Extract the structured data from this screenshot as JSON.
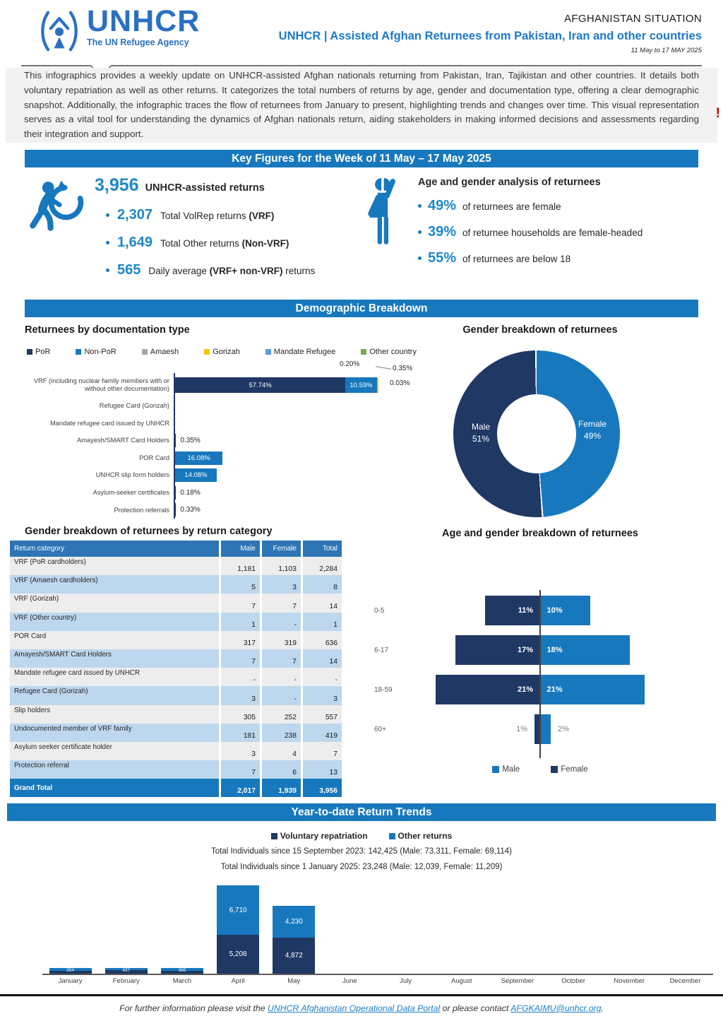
{
  "header": {
    "logo_name": "UNHCR",
    "logo_tagline": "The UN Refugee Agency",
    "situation": "AFGHANISTAN SITUATION",
    "title": "UNHCR |  Assisted Afghan Returnees from Pakistan, Iran and other countries",
    "date_range": "11 May to 17 MAY 2025"
  },
  "intro": {
    "text": "This infographics provides a weekly update on UNHCR-assisted Afghan nationals returning from Pakistan, Iran, Tajikistan and other countries. It details both voluntary repatriation as well as other returns. It categorizes the total numbers of returns by age, gender and documentation type, offering a clear demographic snapshot. Additionally, the infographic traces the flow of returnees from January to present, highlighting trends and changes over time. This visual representation serves as a vital tool for understanding the dynamics of Afghan nationals return, aiding stakeholders in making informed decisions and assessments regarding their integration and support.",
    "alert": "!"
  },
  "banners": {
    "key_figures": "Key Figures for the Week of 11 May – 17 May 2025",
    "demographic": "Demographic Breakdown",
    "trends": "Year-to-date Return Trends"
  },
  "key_figures": {
    "headline": {
      "value": "3,956",
      "label": "UNHCR-assisted returns"
    },
    "bullets": [
      {
        "value": "2,307",
        "text": "Total VolRep returns ",
        "bold": "(VRF)",
        "suffix": ""
      },
      {
        "value": "1,649",
        "text": "Total Other returns ",
        "bold": "(Non-VRF)",
        "suffix": ""
      },
      {
        "value": "565",
        "text": "Daily average ",
        "bold": "(VRF+ non-VRF)",
        "suffix": " returns"
      }
    ],
    "age_gender": {
      "heading": "Age and gender analysis of returnees",
      "bullets": [
        {
          "value": "49%",
          "text": "of returnees are female"
        },
        {
          "value": "39%",
          "text": "of returnee households are female-headed"
        },
        {
          "value": "55%",
          "text": "of returnees are below 18"
        }
      ]
    }
  },
  "chart_data": [
    {
      "id": "documentation_type",
      "type": "bar",
      "orientation": "horizontal",
      "unit": "%",
      "title": "Returnees by documentation type",
      "legend": [
        {
          "label": "PoR",
          "color": "#1F3864"
        },
        {
          "label": "Non-PoR",
          "color": "#1878BE"
        },
        {
          "label": "Amaesh",
          "color": "#A6A6A6"
        },
        {
          "label": "Gorizah",
          "color": "#FFC000"
        },
        {
          "label": "Mandate Refugee",
          "color": "#5B9BD5"
        },
        {
          "label": "Other country",
          "color": "#70AD47"
        }
      ],
      "rows": [
        {
          "label": "VRF (including nuclear family members with or without other documentation)",
          "tall": true,
          "segments": [
            {
              "name": "por",
              "color": "#1F3864",
              "pct": 57.74,
              "label": "57.74%"
            },
            {
              "name": "non-por",
              "color": "#1878BE",
              "pct": 10.59,
              "label": "10.59%"
            },
            {
              "name": "gorizah",
              "color": "#FFC000",
              "pct": 0.58
            }
          ]
        },
        {
          "label": "Refugee Card (Gorizah)"
        },
        {
          "label": "Mandate refugee card issued by UNHCR"
        },
        {
          "label": "Amayesh/SMART Card Holders",
          "segments": [
            {
              "name": "amayesh",
              "color": "#1F3864",
              "pct": 0.35
            }
          ],
          "outside_label": "0.35%"
        },
        {
          "label": "POR Card",
          "segments": [
            {
              "name": "por-card",
              "color": "#1878BE",
              "pct": 16.08,
              "label": "16.08%"
            }
          ]
        },
        {
          "label": "UNHCR slip form holders",
          "segments": [
            {
              "name": "slip",
              "color": "#1878BE",
              "pct": 14.08,
              "label": "14.08%"
            }
          ]
        },
        {
          "label": "Asylum-seeker certificates",
          "segments": [
            {
              "name": "asylum",
              "color": "#1F3864",
              "pct": 0.18
            }
          ],
          "outside_label": "0.18%"
        },
        {
          "label": "Protection referrals",
          "segments": [
            {
              "name": "protection",
              "color": "#1F3864",
              "pct": 0.33
            }
          ],
          "outside_label": "0.33%"
        }
      ],
      "callouts": {
        "a": "0.20%",
        "b": "0.35%",
        "c": "0.03%"
      }
    },
    {
      "id": "gender_breakdown",
      "type": "pie",
      "title": "Gender breakdown of returnees",
      "slices": [
        {
          "label": "Male",
          "pct": 51,
          "pct_label": "51%",
          "color": "#1F3864"
        },
        {
          "label": "Female",
          "pct": 49,
          "pct_label": "49%",
          "color": "#1878BE"
        }
      ]
    },
    {
      "id": "return_category_table",
      "type": "table",
      "title": "Gender breakdown of returnees by return category",
      "columns": [
        "Return category",
        "Male",
        "Female",
        "Total"
      ],
      "rows": [
        [
          "VRF (PoR cardholders)",
          "1,181",
          "1,103",
          "2,284"
        ],
        [
          "VRF (Amaesh cardholders)",
          "5",
          "3",
          "8"
        ],
        [
          "VRF (Gorizah)",
          "7",
          "7",
          "14"
        ],
        [
          "VRF (Other country)",
          "1",
          "-",
          "1"
        ],
        [
          "POR Card",
          "317",
          "319",
          "636"
        ],
        [
          "Amayesh/SMART Card Holders",
          "7",
          "7",
          "14"
        ],
        [
          "Mandate refugee card issued by UNHCR",
          "-",
          "-",
          "-"
        ],
        [
          "Refugee Card (Gorizah)",
          "3",
          "-",
          "3"
        ],
        [
          "Slip holders",
          "305",
          "252",
          "557"
        ],
        [
          "Undocumented member of VRF family",
          "181",
          "238",
          "419"
        ],
        [
          "Asylum seeker certificate holder",
          "3",
          "4",
          "7"
        ],
        [
          "Protection referral",
          "7",
          "6",
          "13"
        ]
      ],
      "grand_total": [
        "Grand Total",
        "2,017",
        "1,939",
        "3,956"
      ]
    },
    {
      "id": "age_gender_pyramid",
      "type": "bar",
      "title": "Age and gender breakdown of returnees",
      "categories": [
        "0-5",
        "6-17",
        "18-59",
        "60+"
      ],
      "left": {
        "color": "#1F3864",
        "values": [
          11,
          17,
          21,
          1
        ],
        "labels": [
          "11%",
          "17%",
          "21%",
          "1%"
        ]
      },
      "right": {
        "color": "#1878BE",
        "values": [
          10,
          18,
          21,
          2
        ],
        "labels": [
          "10%",
          "18%",
          "21%",
          "2%"
        ]
      },
      "outside_label_rows": [
        3
      ],
      "legend": [
        {
          "label": "Male",
          "color": "#1878BE"
        },
        {
          "label": "Female",
          "color": "#1F3864"
        }
      ]
    },
    {
      "id": "ytd_trends",
      "type": "bar",
      "stacked": true,
      "title": "Year-to-date Return Trends",
      "legend": [
        {
          "label": "Voluntary repatriation",
          "color": "#1F3864"
        },
        {
          "label": "Other returns",
          "color": "#1878BE"
        }
      ],
      "note1": "Total Individuals since 15 September 2023: 142,425 (Male: 73,311, Female: 69,114)",
      "note2": "Total Individuals since 1 January 2025: 23,248 (Male: 12,039, Female: 11,209)",
      "months": [
        "January",
        "February",
        "March",
        "April",
        "May",
        "June",
        "July",
        "August",
        "September",
        "October",
        "November",
        "December"
      ],
      "series": [
        {
          "name": "Voluntary repatriation",
          "color": "#1F3864",
          "values": [
            354,
            437,
            365,
            5208,
            4872,
            0,
            0,
            0,
            0,
            0,
            0,
            0
          ],
          "labels": [
            "354",
            "437",
            "365",
            "5,208",
            "4,872",
            "",
            "",
            "",
            "",
            "",
            "",
            ""
          ]
        },
        {
          "name": "Other returns",
          "color": "#1878BE",
          "values": [
            390,
            310,
            372,
            6710,
            4230,
            0,
            0,
            0,
            0,
            0,
            0,
            0
          ],
          "labels": [
            "",
            "",
            "",
            "6,710",
            "4,230",
            "",
            "",
            "",
            "",
            "",
            "",
            ""
          ]
        }
      ]
    }
  ],
  "footer": {
    "pre": "For further information please visit the ",
    "link_portal": "UNHCR Afghanistan Operational Data Portal",
    "mid": " or please contact ",
    "link_email": "AFGKAIMU@unhcr.org",
    "post": "."
  }
}
